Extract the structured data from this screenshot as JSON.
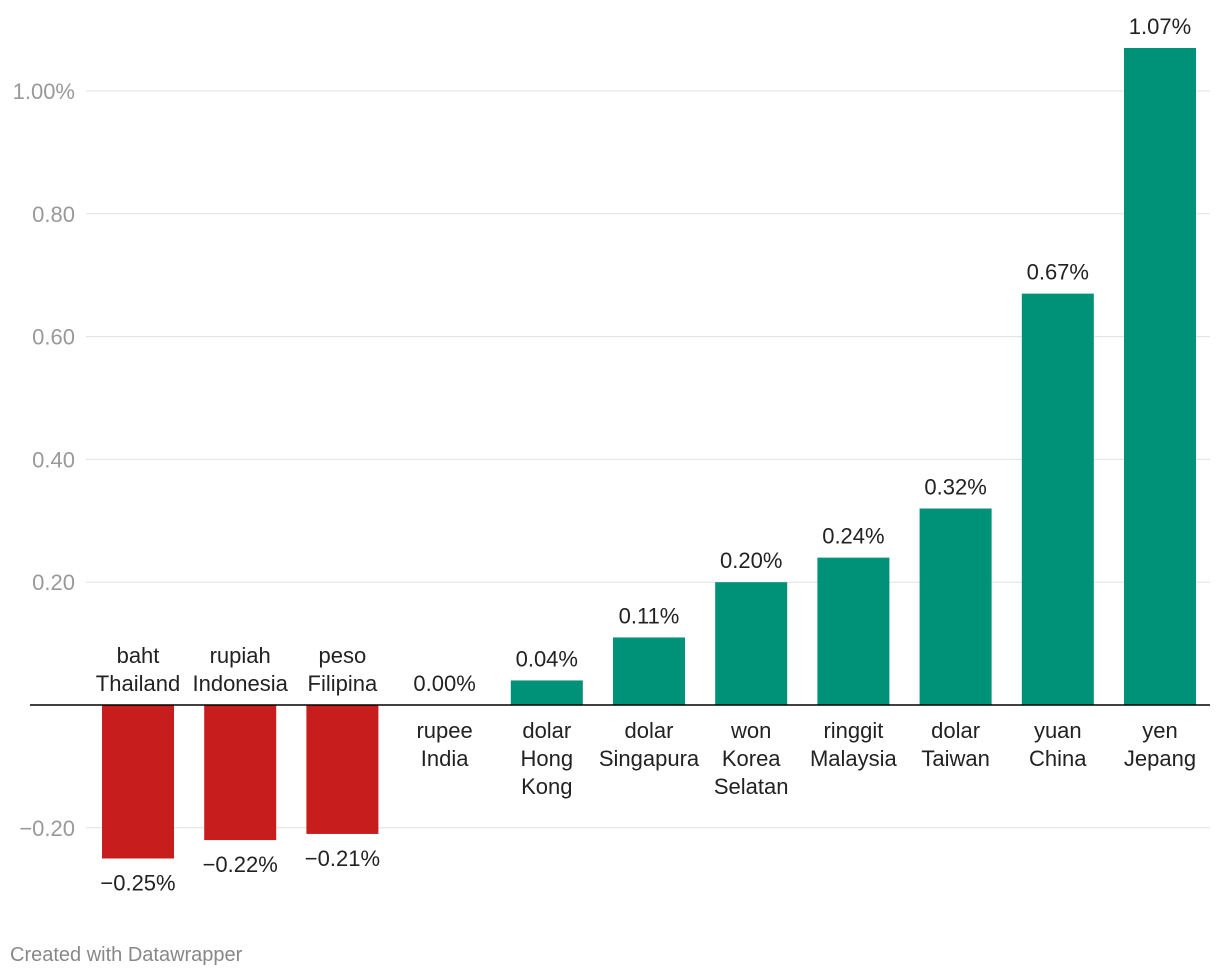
{
  "chart_data": {
    "type": "bar",
    "categories": [
      [
        "baht",
        "Thailand"
      ],
      [
        "rupiah",
        "Indonesia"
      ],
      [
        "peso",
        "Filipina"
      ],
      [
        "rupee",
        "India"
      ],
      [
        "dolar",
        "Hong",
        "Kong"
      ],
      [
        "dolar",
        "Singapura"
      ],
      [
        "won",
        "Korea",
        "Selatan"
      ],
      [
        "ringgit",
        "Malaysia"
      ],
      [
        "dolar",
        "Taiwan"
      ],
      [
        "yuan",
        "China"
      ],
      [
        "yen",
        "Jepang"
      ]
    ],
    "values": [
      -0.25,
      -0.22,
      -0.21,
      0.0,
      0.04,
      0.11,
      0.2,
      0.24,
      0.32,
      0.67,
      1.07
    ],
    "value_labels": [
      "−0.25%",
      "−0.22%",
      "−0.21%",
      "0.00%",
      "0.04%",
      "0.11%",
      "0.20%",
      "0.24%",
      "0.32%",
      "0.67%",
      "1.07%"
    ],
    "y_ticks": [
      {
        "value": 1.0,
        "label": "1.00%"
      },
      {
        "value": 0.8,
        "label": "0.80"
      },
      {
        "value": 0.6,
        "label": "0.60"
      },
      {
        "value": 0.4,
        "label": "0.40"
      },
      {
        "value": 0.2,
        "label": "0.20"
      },
      {
        "value": -0.2,
        "label": "−0.20"
      }
    ],
    "ylim": [
      -0.3,
      1.1
    ],
    "grid": true,
    "colors": {
      "positive": "#009179",
      "negative": "#c71e1d",
      "grid": "#e0e0e0",
      "axis": "#000000",
      "tick_text": "#999999",
      "label_text": "#222222"
    }
  },
  "footer": {
    "credit": "Created with Datawrapper"
  }
}
